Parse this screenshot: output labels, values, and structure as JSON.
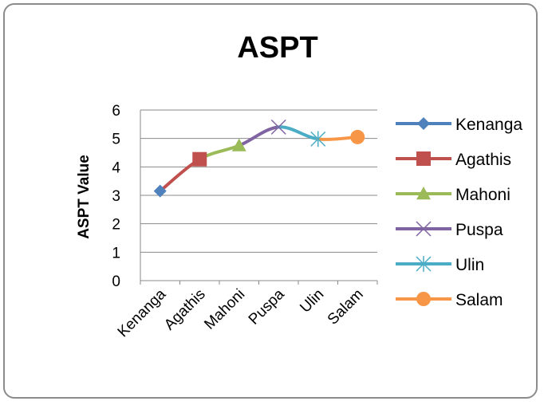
{
  "chart_data": {
    "type": "line",
    "title": "ASPT",
    "xlabel": "",
    "ylabel": "ASPT Value",
    "categories": [
      "Kenanga",
      "Agathis",
      "Mahoni",
      "Puspa",
      "Ulin",
      "Salam"
    ],
    "yticks": [
      "0",
      "1",
      "2",
      "3",
      "4",
      "5",
      "6"
    ],
    "ylim": [
      0,
      6
    ],
    "grid": true,
    "legend_position": "right",
    "series": [
      {
        "name": "Kenanga",
        "values": [
          3.15,
          4.27,
          null,
          null,
          null,
          null
        ],
        "color": "#4f81bd",
        "marker": "diamond"
      },
      {
        "name": "Agathis",
        "values": [
          3.15,
          4.27,
          4.75,
          null,
          null,
          null
        ],
        "color": "#c0504d",
        "marker": "square"
      },
      {
        "name": "Mahoni",
        "values": [
          null,
          4.27,
          4.75,
          5.4,
          null,
          null
        ],
        "color": "#9bbb59",
        "marker": "triangle"
      },
      {
        "name": "Puspa",
        "values": [
          null,
          null,
          4.75,
          5.4,
          4.98,
          null
        ],
        "color": "#8064a2",
        "marker": "x"
      },
      {
        "name": "Ulin",
        "values": [
          null,
          null,
          null,
          5.4,
          4.98,
          5.05
        ],
        "color": "#4bacc6",
        "marker": "star"
      },
      {
        "name": "Salam",
        "values": [
          null,
          null,
          null,
          null,
          4.98,
          5.05
        ],
        "color": "#f79646",
        "marker": "circle"
      }
    ]
  }
}
